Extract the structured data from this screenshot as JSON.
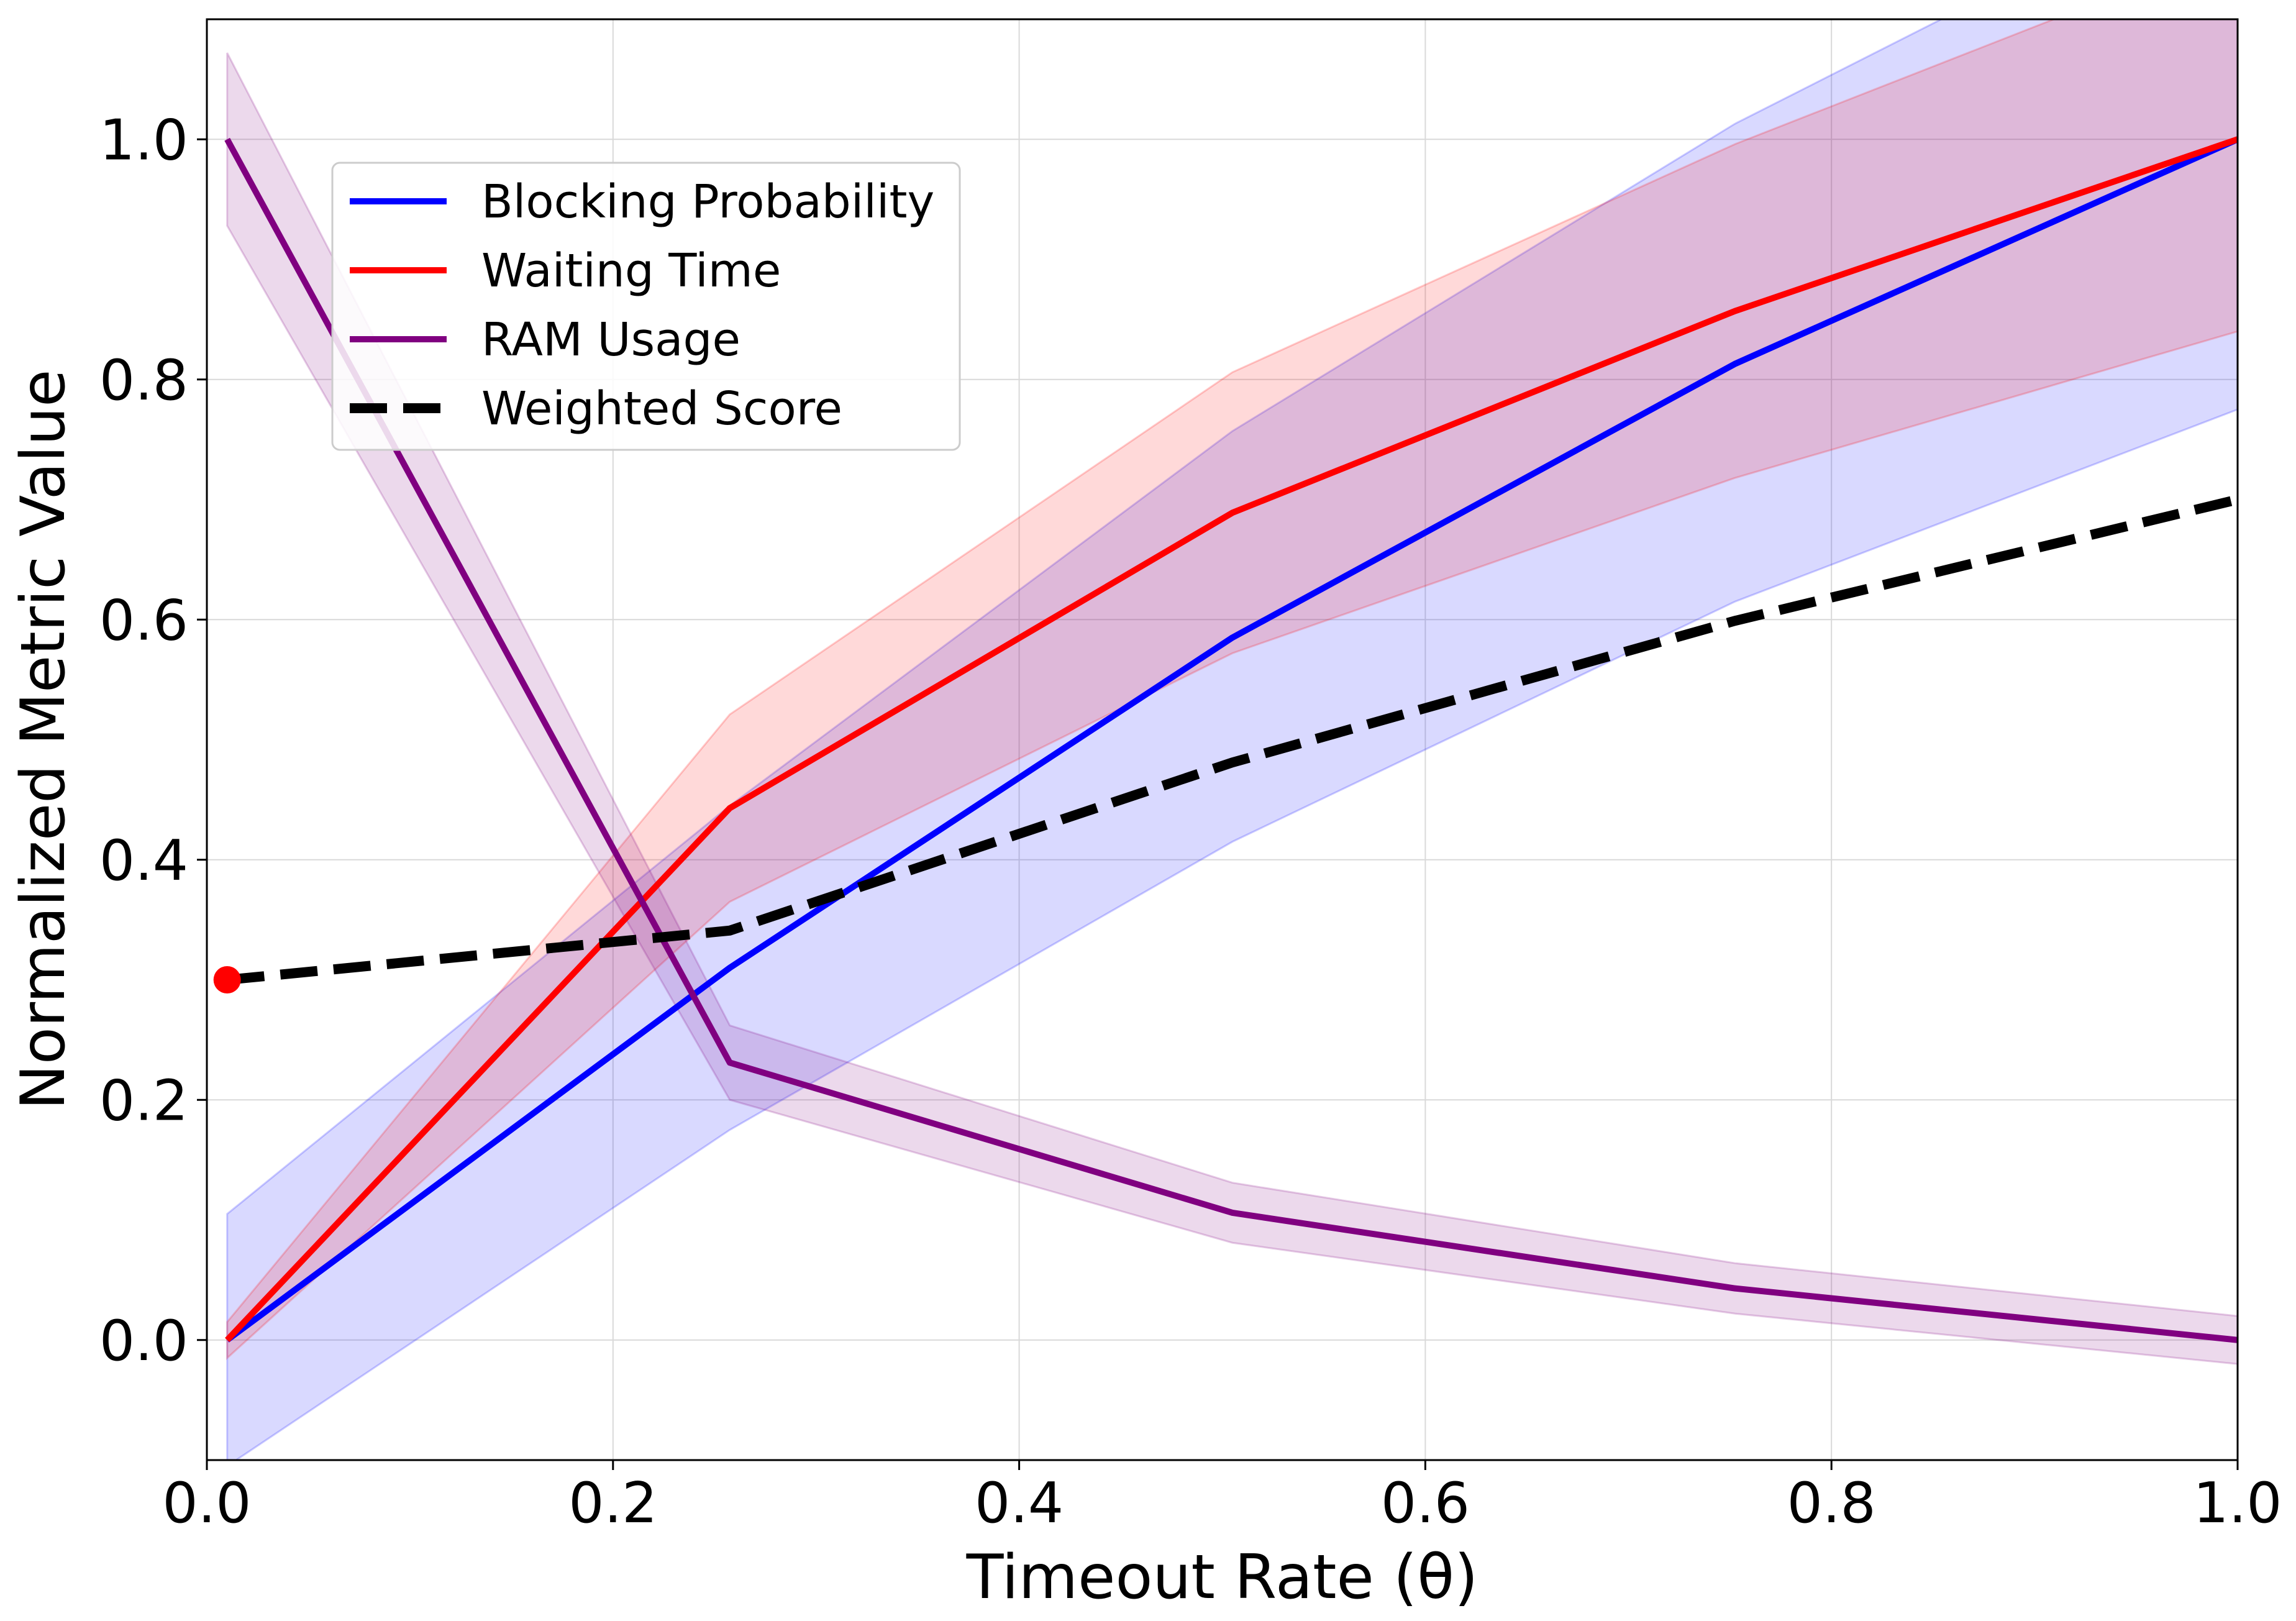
{
  "chart_data": {
    "type": "line",
    "xlabel": "Timeout Rate (θ)",
    "ylabel": "Normalized Metric Value",
    "xlim": [
      0.0,
      1.0
    ],
    "ylim": [
      -0.1,
      1.1
    ],
    "xticks": [
      "0.0",
      "0.2",
      "0.4",
      "0.6",
      "0.8",
      "1.0"
    ],
    "yticks": [
      "0.0",
      "0.2",
      "0.4",
      "0.6",
      "0.8",
      "1.0"
    ],
    "grid": true,
    "legend_position": "upper-left",
    "x": [
      0.01,
      0.2575,
      0.505,
      0.7525,
      1.0
    ],
    "series": [
      {
        "name": "Blocking Probability",
        "color": "#0000ff",
        "style": "solid",
        "values": [
          0.0,
          0.31,
          0.585,
          0.813,
          1.0
        ],
        "band_lower": [
          -0.105,
          0.175,
          0.415,
          0.615,
          0.775
        ],
        "band_upper": [
          0.105,
          0.445,
          0.757,
          1.013,
          1.225
        ],
        "band_color": "#0000ff",
        "band_opacity": 0.15
      },
      {
        "name": "Waiting Time",
        "color": "#ff0000",
        "style": "solid",
        "values": [
          0.0,
          0.443,
          0.689,
          0.857,
          1.0
        ],
        "band_lower": [
          -0.015,
          0.365,
          0.572,
          0.718,
          0.84
        ],
        "band_upper": [
          0.015,
          0.521,
          0.806,
          0.996,
          1.16
        ],
        "band_color": "#ff0000",
        "band_opacity": 0.15
      },
      {
        "name": "RAM Usage",
        "color": "#800080",
        "style": "solid",
        "values": [
          1.0,
          0.231,
          0.106,
          0.043,
          0.0
        ],
        "band_lower": [
          0.928,
          0.2,
          0.081,
          0.022,
          -0.02
        ],
        "band_upper": [
          1.072,
          0.262,
          0.131,
          0.064,
          0.02
        ],
        "band_color": "#800080",
        "band_opacity": 0.15
      },
      {
        "name": "Weighted Score",
        "color": "#000000",
        "style": "dashed",
        "values": [
          0.3,
          0.341,
          0.481,
          0.599,
          0.7
        ]
      }
    ],
    "highlight_point": {
      "x": 0.01,
      "y": 0.3,
      "color": "#ff0000"
    }
  }
}
